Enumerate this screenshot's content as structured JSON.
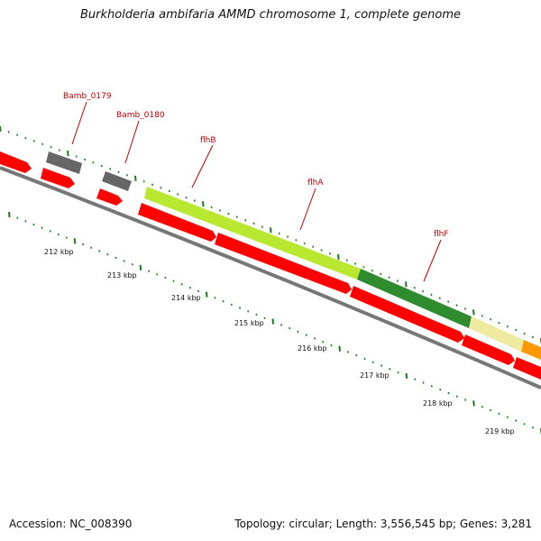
{
  "title": "Burkholderia ambifaria AMMD chromosome 1, complete genome",
  "footer": {
    "accession": "Accession: NC_008390",
    "topology": "Topology: circular; Length: 3,556,545 bp; Genes: 3,281"
  },
  "colors": {
    "forward_gene": "#ff0000",
    "reverse_gene_red": "#ff0000",
    "gray_gene": "#666666",
    "flhB_light": "#b8e830",
    "flhA_dark": "#2e8b2e",
    "flhF_pale": "#eeeaa0",
    "orange_gene": "#ff9900",
    "backbone": "#777777",
    "ticks": "#1f7a1f",
    "label_text": "#c00000"
  },
  "scale": {
    "unit": "kbp",
    "labels": [
      "212 kbp",
      "213 kbp",
      "214 kbp",
      "215 kbp",
      "216 kbp",
      "217 kbp",
      "218 kbp",
      "219 kbp"
    ]
  },
  "gene_labels": [
    {
      "name": "Bamb_0179"
    },
    {
      "name": "Bamb_0180"
    },
    {
      "name": "flhB"
    },
    {
      "name": "flhA"
    },
    {
      "name": "flhF"
    }
  ]
}
